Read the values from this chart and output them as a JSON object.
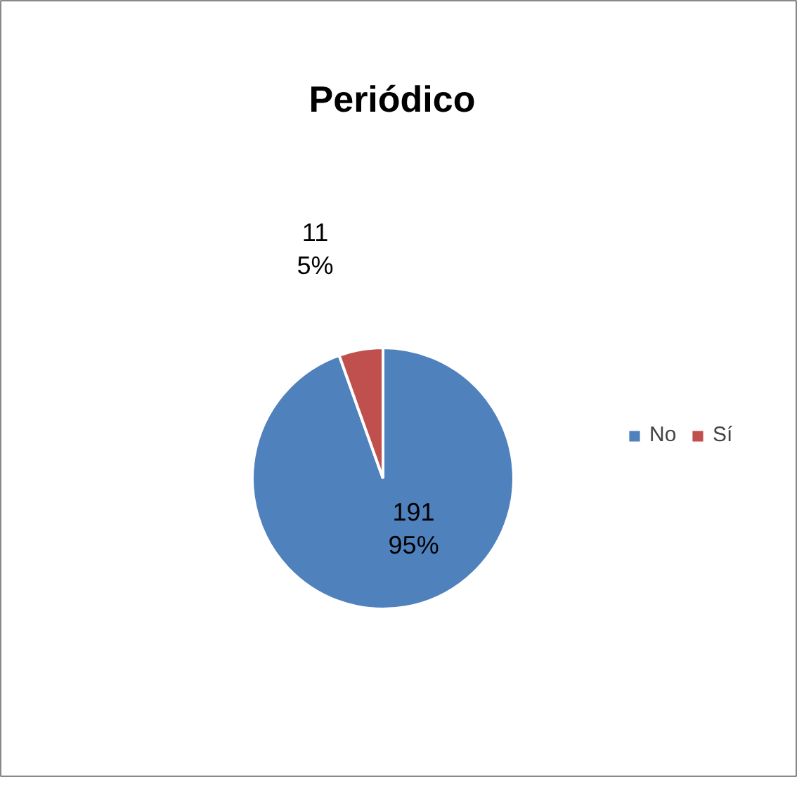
{
  "chart_data": {
    "type": "pie",
    "title": "Periódico",
    "categories": [
      "No",
      "Sí"
    ],
    "values": [
      191,
      11
    ],
    "colors": [
      "#4f81bd",
      "#c0504d"
    ],
    "value_labels": [
      "191\n95%",
      "11\n5%"
    ],
    "legend": "right"
  }
}
